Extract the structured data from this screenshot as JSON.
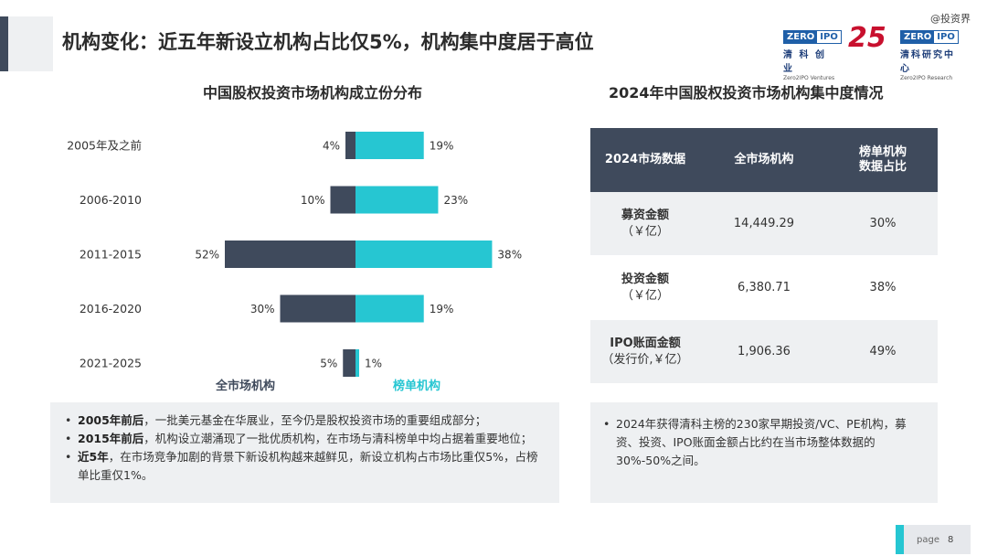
{
  "slide": {
    "title": "机构变化：近五年新设立机构占比仅5%，机构集中度居于高位",
    "watermark": "@投资界"
  },
  "logos": {
    "ventures": {
      "box_left": "ZERO",
      "box_right": "IPO",
      "cn": "清 科 创 业",
      "en": "Zero2IPO Ventures"
    },
    "anniversary": "25",
    "research": {
      "box_left": "ZERO",
      "box_right": "IPO",
      "cn": "清科研究中心",
      "en": "Zero2IPO Research"
    }
  },
  "left_panel": {
    "title": "中国股权投资市场机构成立份分布",
    "legend": {
      "all_market": "全市场机构",
      "ranked": "榜单机构"
    }
  },
  "chart_data": {
    "type": "bar",
    "orientation": "horizontal-diverging",
    "categories": [
      "2005年及之前",
      "2006-2010",
      "2011-2015",
      "2016-2020",
      "2021-2025"
    ],
    "series": [
      {
        "name": "全市场机构",
        "values": [
          4,
          10,
          52,
          30,
          5
        ],
        "labels": [
          "4%",
          "10%",
          "52%",
          "30%",
          "5%"
        ],
        "color": "#3f4a5c",
        "direction": "left"
      },
      {
        "name": "榜单机构",
        "values": [
          19,
          23,
          38,
          19,
          1
        ],
        "labels": [
          "19%",
          "23%",
          "38%",
          "19%",
          "1%"
        ],
        "color": "#26c6d2",
        "direction": "right"
      }
    ],
    "unit": "%",
    "title": "中国股权投资市场机构成立份分布",
    "legend": "bottom"
  },
  "right_panel": {
    "title": "2024年中国股权投资市场机构集中度情况",
    "table": {
      "headers": [
        "2024市场数据",
        "全市场机构",
        "榜单机构\n数据占比"
      ],
      "rows": [
        {
          "label": "募资金额",
          "unit": "（￥亿）",
          "value": "14,449.29",
          "share": "30%"
        },
        {
          "label": "投资金额",
          "unit": "（￥亿）",
          "value": "6,380.71",
          "share": "38%"
        },
        {
          "label": "IPO账面金额",
          "unit": "（发行价,￥亿）",
          "value": "1,906.36",
          "share": "49%"
        }
      ]
    }
  },
  "notes_left": [
    {
      "bold": "2005年前后",
      "text": "，一批美元基金在华展业，至今仍是股权投资市场的重要组成部分；"
    },
    {
      "bold": "2015年前后",
      "text": "，机构设立潮涌现了一批优质机构，在市场与清科榜单中均占据着重要地位；"
    },
    {
      "bold": "近5年",
      "text": "，在市场竞争加剧的背景下新设机构越来越鲜见，新设立机构占市场比重仅5%，占榜单比重仅1%。"
    }
  ],
  "notes_right": [
    {
      "text": "2024年获得清科主榜的230家早期投资/VC、PE机构，募资、投资、IPO账面金额占比约在当市场整体数据的30%-50%之间。"
    }
  ],
  "footer": {
    "page_label": "page",
    "page_number": "8"
  }
}
